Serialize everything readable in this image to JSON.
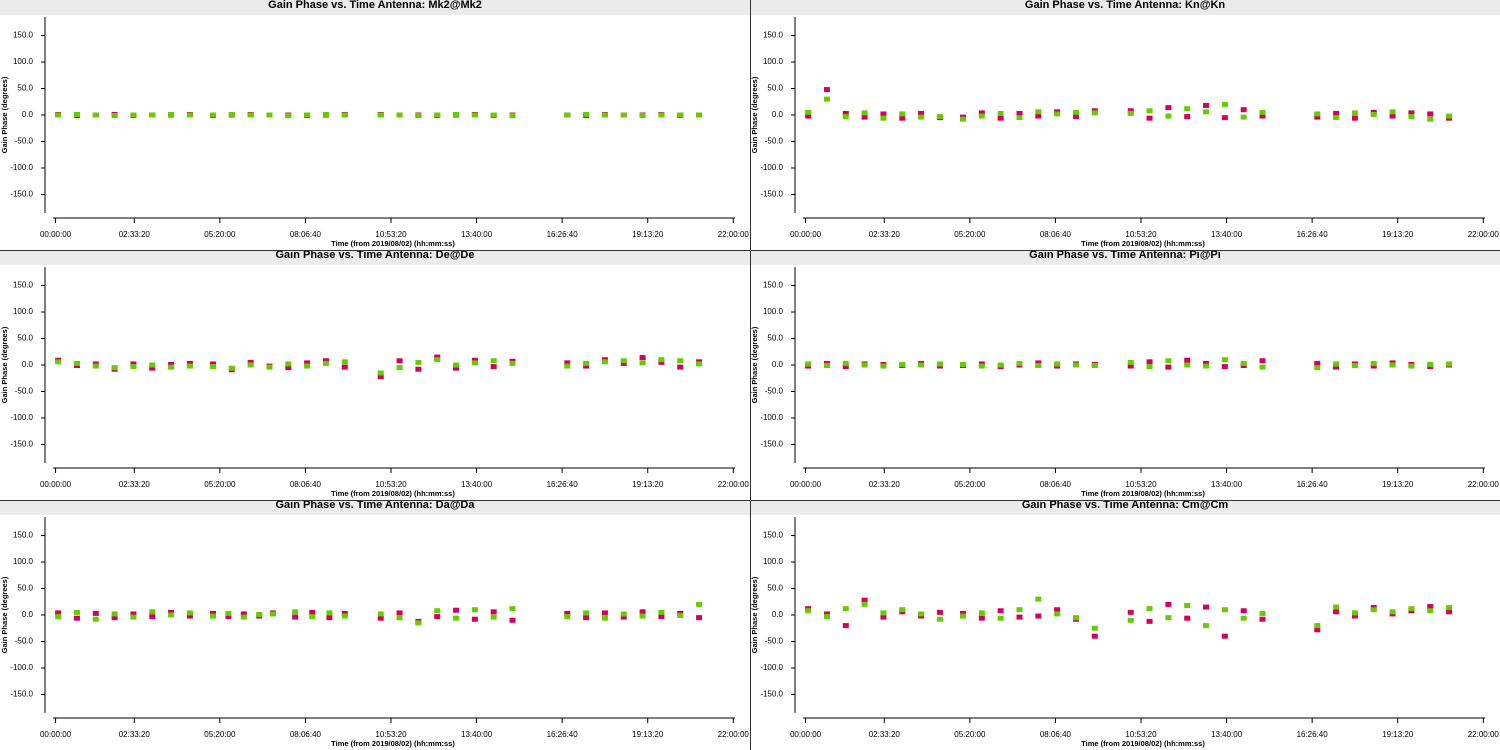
{
  "chart_data": [
    {
      "type": "scatter",
      "title": "Gain Phase vs. Time Antenna: Mk2@Mk2",
      "xlabel": "Time (from 2019/08/02) (hh:mm:ss)",
      "ylabel": "Gain Phase (degrees)",
      "xlim": [
        -1000,
        79400
      ],
      "ylim": [
        -185,
        185
      ],
      "xticks": [
        {
          "value": 0,
          "label": "00:00:00"
        },
        {
          "value": 9200,
          "label": "02:33:20"
        },
        {
          "value": 19200,
          "label": "05:20:00"
        },
        {
          "value": 29200,
          "label": "08:06:40"
        },
        {
          "value": 39200,
          "label": "10:53:20"
        },
        {
          "value": 49200,
          "label": "13:40:00"
        },
        {
          "value": 59200,
          "label": "16:26:40"
        },
        {
          "value": 69200,
          "label": "19:13:20"
        },
        {
          "value": 79200,
          "label": "22:00:00"
        }
      ],
      "yticks": [
        {
          "value": 150,
          "label": "150.0"
        },
        {
          "value": 100,
          "label": "100.0"
        },
        {
          "value": 50,
          "label": "50.0"
        },
        {
          "value": 0,
          "label": "0.0"
        },
        {
          "value": -50,
          "label": "-50.0"
        },
        {
          "value": -100,
          "label": "-100.0"
        },
        {
          "value": -150,
          "label": "-150.0"
        }
      ],
      "x": [
        300,
        2500,
        4700,
        6900,
        9100,
        11300,
        13500,
        15700,
        18400,
        20600,
        22800,
        25000,
        27200,
        29400,
        31600,
        33800,
        38000,
        40200,
        42400,
        44600,
        46800,
        49000,
        51200,
        53400,
        59800,
        62000,
        64200,
        66400,
        68600,
        70800,
        73000,
        75200
      ],
      "series": [
        {
          "color": "#d6005c",
          "values": [
            1,
            -1,
            0,
            1,
            -1,
            0,
            0,
            1,
            -1,
            0,
            1,
            0,
            0,
            -1,
            0,
            1,
            1,
            0,
            0,
            -1,
            0,
            1,
            -1,
            0,
            0,
            -1,
            1,
            0,
            0,
            1,
            -1,
            0
          ]
        },
        {
          "color": "#66cc00",
          "values": [
            0,
            1,
            0,
            -1,
            0,
            0,
            1,
            0,
            0,
            1,
            0,
            0,
            -1,
            0,
            1,
            0,
            0,
            0,
            -1,
            0,
            1,
            0,
            0,
            -1,
            0,
            1,
            0,
            0,
            -1,
            0,
            0,
            0
          ]
        }
      ]
    },
    {
      "type": "scatter",
      "title": "Gain Phase vs. Time Antenna: Kn@Kn",
      "xlabel": "Time (from 2019/08/02) (hh:mm:ss)",
      "ylabel": "Gain Phase (degrees)",
      "xlim": [
        -1000,
        79400
      ],
      "ylim": [
        -185,
        185
      ],
      "xticks": [
        {
          "value": 0,
          "label": "00:00:00"
        },
        {
          "value": 9200,
          "label": "02:33:20"
        },
        {
          "value": 19200,
          "label": "05:20:00"
        },
        {
          "value": 29200,
          "label": "08:06:40"
        },
        {
          "value": 39200,
          "label": "10:53:20"
        },
        {
          "value": 49200,
          "label": "13:40:00"
        },
        {
          "value": 59200,
          "label": "16:26:40"
        },
        {
          "value": 69200,
          "label": "19:13:20"
        },
        {
          "value": 79200,
          "label": "22:00:00"
        }
      ],
      "yticks": [
        {
          "value": 150,
          "label": "150.0"
        },
        {
          "value": 100,
          "label": "100.0"
        },
        {
          "value": 50,
          "label": "50.0"
        },
        {
          "value": 0,
          "label": "0.0"
        },
        {
          "value": -50,
          "label": "-50.0"
        },
        {
          "value": -100,
          "label": "-100.0"
        },
        {
          "value": -150,
          "label": "-150.0"
        }
      ],
      "x": [
        300,
        2500,
        4700,
        6900,
        9100,
        11300,
        13500,
        15700,
        18400,
        20600,
        22800,
        25000,
        27200,
        29400,
        31600,
        33800,
        38000,
        40200,
        42400,
        44600,
        46800,
        49000,
        51200,
        53400,
        59800,
        62000,
        64200,
        66400,
        68600,
        70800,
        73000,
        75200
      ],
      "series": [
        {
          "color": "#d6005c",
          "values": [
            -2,
            48,
            3,
            -4,
            2,
            -6,
            3,
            -5,
            -4,
            4,
            -6,
            3,
            -2,
            6,
            -3,
            8,
            8,
            -6,
            14,
            -3,
            18,
            -5,
            10,
            -2,
            -4,
            3,
            -6,
            5,
            -2,
            4,
            2,
            -6
          ]
        },
        {
          "color": "#66cc00",
          "values": [
            5,
            30,
            -3,
            4,
            -6,
            2,
            -4,
            -3,
            -8,
            -2,
            3,
            -5,
            6,
            2,
            5,
            4,
            3,
            8,
            -2,
            12,
            6,
            20,
            -4,
            5,
            2,
            -5,
            4,
            1,
            6,
            -3,
            -8,
            -2
          ]
        }
      ]
    },
    {
      "type": "scatter",
      "title": "Gain Phase vs. Time Antenna: De@De",
      "xlabel": "Time (from 2019/08/02) (hh:mm:ss)",
      "ylabel": "Gain Phase (degrees)",
      "xlim": [
        -1000,
        79400
      ],
      "ylim": [
        -185,
        185
      ],
      "xticks": [
        {
          "value": 0,
          "label": "00:00:00"
        },
        {
          "value": 9200,
          "label": "02:33:20"
        },
        {
          "value": 19200,
          "label": "05:20:00"
        },
        {
          "value": 29200,
          "label": "08:06:40"
        },
        {
          "value": 39200,
          "label": "10:53:20"
        },
        {
          "value": 49200,
          "label": "13:40:00"
        },
        {
          "value": 59200,
          "label": "16:26:40"
        },
        {
          "value": 69200,
          "label": "19:13:20"
        },
        {
          "value": 79200,
          "label": "22:00:00"
        }
      ],
      "yticks": [
        {
          "value": 150,
          "label": "150.0"
        },
        {
          "value": 100,
          "label": "100.0"
        },
        {
          "value": 50,
          "label": "50.0"
        },
        {
          "value": 0,
          "label": "0.0"
        },
        {
          "value": -50,
          "label": "-50.0"
        },
        {
          "value": -100,
          "label": "-100.0"
        },
        {
          "value": -150,
          "label": "-150.0"
        }
      ],
      "x": [
        300,
        2500,
        4700,
        6900,
        9100,
        11300,
        13500,
        15700,
        18400,
        20600,
        22800,
        25000,
        27200,
        29400,
        31600,
        33800,
        38000,
        40200,
        42400,
        44600,
        46800,
        49000,
        51200,
        53400,
        59800,
        62000,
        64200,
        66400,
        68600,
        70800,
        73000,
        75200
      ],
      "series": [
        {
          "color": "#d6005c",
          "values": [
            9,
            -1,
            2,
            -8,
            2,
            -6,
            1,
            3,
            2,
            -9,
            5,
            -2,
            -5,
            4,
            8,
            -4,
            -22,
            8,
            -8,
            15,
            -6,
            9,
            -3,
            7,
            4,
            -2,
            10,
            3,
            14,
            5,
            -4,
            6
          ]
        },
        {
          "color": "#66cc00",
          "values": [
            6,
            3,
            -2,
            -5,
            -3,
            0,
            -4,
            -2,
            -3,
            -6,
            0,
            -4,
            2,
            -2,
            3,
            6,
            -15,
            -5,
            5,
            10,
            0,
            4,
            8,
            3,
            -2,
            3,
            6,
            8,
            4,
            10,
            8,
            2
          ]
        }
      ]
    },
    {
      "type": "scatter",
      "title": "Gain Phase vs. Time Antenna: Pi@Pi",
      "xlabel": "Time (from 2019/08/02) (hh:mm:ss)",
      "ylabel": "Gain Phase (degrees)",
      "xlim": [
        -1000,
        79400
      ],
      "ylim": [
        -185,
        185
      ],
      "xticks": [
        {
          "value": 0,
          "label": "00:00:00"
        },
        {
          "value": 9200,
          "label": "02:33:20"
        },
        {
          "value": 19200,
          "label": "05:20:00"
        },
        {
          "value": 29200,
          "label": "08:06:40"
        },
        {
          "value": 39200,
          "label": "10:53:20"
        },
        {
          "value": 49200,
          "label": "13:40:00"
        },
        {
          "value": 59200,
          "label": "16:26:40"
        },
        {
          "value": 69200,
          "label": "19:13:20"
        },
        {
          "value": 79200,
          "label": "22:00:00"
        }
      ],
      "yticks": [
        {
          "value": 150,
          "label": "150.0"
        },
        {
          "value": 100,
          "label": "100.0"
        },
        {
          "value": 50,
          "label": "50.0"
        },
        {
          "value": 0,
          "label": "0.0"
        },
        {
          "value": -50,
          "label": "-50.0"
        },
        {
          "value": -100,
          "label": "-100.0"
        },
        {
          "value": -150,
          "label": "-150.0"
        }
      ],
      "x": [
        300,
        2500,
        4700,
        6900,
        9100,
        11300,
        13500,
        15700,
        18400,
        20600,
        22800,
        25000,
        27200,
        29400,
        31600,
        33800,
        38000,
        40200,
        42400,
        44600,
        46800,
        49000,
        51200,
        53400,
        59800,
        62000,
        64200,
        66400,
        68600,
        70800,
        73000,
        75200
      ],
      "series": [
        {
          "color": "#d6005c",
          "values": [
            -2,
            3,
            -3,
            2,
            1,
            -1,
            3,
            -2,
            -1,
            2,
            -3,
            0,
            4,
            -2,
            2,
            1,
            -2,
            6,
            -4,
            9,
            3,
            -3,
            -1,
            8,
            3,
            -4,
            2,
            -2,
            4,
            1,
            -3,
            0
          ]
        },
        {
          "color": "#66cc00",
          "values": [
            2,
            -1,
            3,
            0,
            -2,
            1,
            0,
            2,
            1,
            -2,
            0,
            3,
            -1,
            2,
            0,
            -1,
            5,
            -3,
            8,
            0,
            -2,
            10,
            3,
            -4,
            -5,
            2,
            -1,
            3,
            0,
            -2,
            1,
            2
          ]
        }
      ]
    },
    {
      "type": "scatter",
      "title": "Gain Phase vs. Time Antenna: Da@Da",
      "xlabel": "Time (from 2019/08/02) (hh:mm:ss)",
      "ylabel": "Gain Phase (degrees)",
      "xlim": [
        -1000,
        79400
      ],
      "ylim": [
        -185,
        185
      ],
      "xticks": [
        {
          "value": 0,
          "label": "00:00:00"
        },
        {
          "value": 9200,
          "label": "02:33:20"
        },
        {
          "value": 19200,
          "label": "05:20:00"
        },
        {
          "value": 29200,
          "label": "08:06:40"
        },
        {
          "value": 39200,
          "label": "10:53:20"
        },
        {
          "value": 49200,
          "label": "13:40:00"
        },
        {
          "value": 59200,
          "label": "16:26:40"
        },
        {
          "value": 69200,
          "label": "19:13:20"
        },
        {
          "value": 79200,
          "label": "22:00:00"
        }
      ],
      "yticks": [
        {
          "value": 150,
          "label": "150.0"
        },
        {
          "value": 100,
          "label": "100.0"
        },
        {
          "value": 50,
          "label": "50.0"
        },
        {
          "value": 0,
          "label": "0.0"
        },
        {
          "value": -50,
          "label": "-50.0"
        },
        {
          "value": -100,
          "label": "-100.0"
        },
        {
          "value": -150,
          "label": "-150.0"
        }
      ],
      "x": [
        300,
        2500,
        4700,
        6900,
        9100,
        11300,
        13500,
        15700,
        18400,
        20200,
        22000,
        23800,
        25400,
        28000,
        30000,
        32000,
        33800,
        38000,
        40200,
        42400,
        44600,
        46800,
        49000,
        51200,
        53400,
        59800,
        62000,
        64200,
        66400,
        68600,
        70800,
        73000,
        75200
      ],
      "series": [
        {
          "color": "#d6005c",
          "values": [
            4,
            -6,
            3,
            -5,
            2,
            -3,
            5,
            -2,
            3,
            -3,
            2,
            -2,
            4,
            -4,
            5,
            -5,
            3,
            -6,
            4,
            -12,
            -3,
            9,
            -8,
            6,
            -10,
            3,
            -5,
            4,
            -4,
            6,
            -3,
            3,
            -5
          ]
        },
        {
          "color": "#66cc00",
          "values": [
            -3,
            5,
            -8,
            2,
            -4,
            6,
            0,
            4,
            -2,
            3,
            -4,
            1,
            2,
            6,
            -3,
            4,
            -2,
            2,
            -5,
            -15,
            8,
            -6,
            10,
            -4,
            12,
            -3,
            4,
            -6,
            2,
            -2,
            5,
            -1,
            20
          ]
        }
      ]
    },
    {
      "type": "scatter",
      "title": "Gain Phase vs. Time Antenna: Cm@Cm",
      "xlabel": "Time (from 2019/08/02) (hh:mm:ss)",
      "ylabel": "Gain Phase (degrees)",
      "xlim": [
        -1000,
        79400
      ],
      "ylim": [
        -185,
        185
      ],
      "xticks": [
        {
          "value": 0,
          "label": "00:00:00"
        },
        {
          "value": 9200,
          "label": "02:33:20"
        },
        {
          "value": 19200,
          "label": "05:20:00"
        },
        {
          "value": 29200,
          "label": "08:06:40"
        },
        {
          "value": 39200,
          "label": "10:53:20"
        },
        {
          "value": 49200,
          "label": "13:40:00"
        },
        {
          "value": 59200,
          "label": "16:26:40"
        },
        {
          "value": 69200,
          "label": "19:13:20"
        },
        {
          "value": 79200,
          "label": "22:00:00"
        }
      ],
      "yticks": [
        {
          "value": 150,
          "label": "150.0"
        },
        {
          "value": 100,
          "label": "100.0"
        },
        {
          "value": 50,
          "label": "50.0"
        },
        {
          "value": 0,
          "label": "0.0"
        },
        {
          "value": -50,
          "label": "-50.0"
        },
        {
          "value": -100,
          "label": "-100.0"
        },
        {
          "value": -150,
          "label": "-150.0"
        }
      ],
      "x": [
        300,
        2500,
        4700,
        6900,
        9100,
        11300,
        13500,
        15700,
        18400,
        20600,
        22800,
        25000,
        27200,
        29400,
        31600,
        33800,
        38000,
        40200,
        42400,
        44600,
        46800,
        49000,
        51200,
        53400,
        59800,
        62000,
        64200,
        66400,
        68600,
        70800,
        73000,
        75200
      ],
      "series": [
        {
          "color": "#d6005c",
          "values": [
            12,
            2,
            -20,
            28,
            -4,
            6,
            -2,
            5,
            3,
            -6,
            8,
            -4,
            -2,
            10,
            -8,
            -40,
            5,
            -12,
            20,
            -6,
            15,
            -40,
            8,
            -8,
            -28,
            6,
            -2,
            14,
            2,
            8,
            16,
            6
          ]
        },
        {
          "color": "#66cc00",
          "values": [
            8,
            -3,
            12,
            20,
            4,
            10,
            2,
            -8,
            -2,
            4,
            -6,
            10,
            30,
            2,
            -5,
            -25,
            -10,
            12,
            -5,
            18,
            -20,
            10,
            -6,
            3,
            -20,
            15,
            4,
            10,
            6,
            12,
            8,
            14
          ]
        }
      ]
    }
  ]
}
